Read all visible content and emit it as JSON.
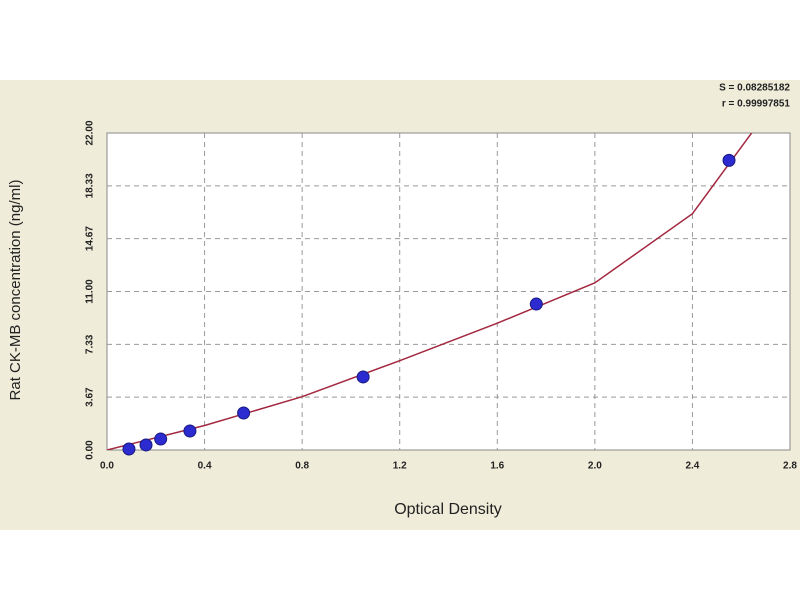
{
  "chart_data": {
    "type": "scatter",
    "x_label": "Optical Density",
    "y_label": "Rat CK-MB concentration (ng/ml)",
    "annotations": [
      "S = 0.08285182",
      "r = 0.99997851"
    ],
    "x": [
      0.09,
      0.16,
      0.22,
      0.34,
      0.56,
      1.05,
      1.76,
      2.55
    ],
    "values": [
      0.07,
      0.35,
      0.76,
      1.32,
      2.57,
      5.07,
      10.13,
      20.1
    ],
    "color": "#2b2bd0",
    "fit": {
      "x": [
        0.0,
        0.4,
        0.8,
        1.2,
        1.6,
        2.0,
        2.4,
        2.66
      ],
      "values": [
        0.0,
        1.7,
        3.7,
        6.2,
        8.8,
        11.6,
        16.4,
        22.4
      ],
      "color": "#a3283f"
    },
    "xlim": [
      0,
      2.8
    ],
    "xticks": [
      {
        "value": 0,
        "label": "0.0"
      },
      0.4,
      0.8,
      1.2,
      1.6,
      {
        "value": 2,
        "label": "2.0"
      },
      2.4,
      2.8
    ],
    "ylim": [
      0,
      22
    ],
    "yticks": [
      {
        "value": 0,
        "label": "0.00"
      },
      3.67,
      7.33,
      {
        "value": 11,
        "label": "11.00"
      },
      14.67,
      18.33,
      {
        "value": 22,
        "label": "22.00"
      }
    ],
    "grid": true
  }
}
